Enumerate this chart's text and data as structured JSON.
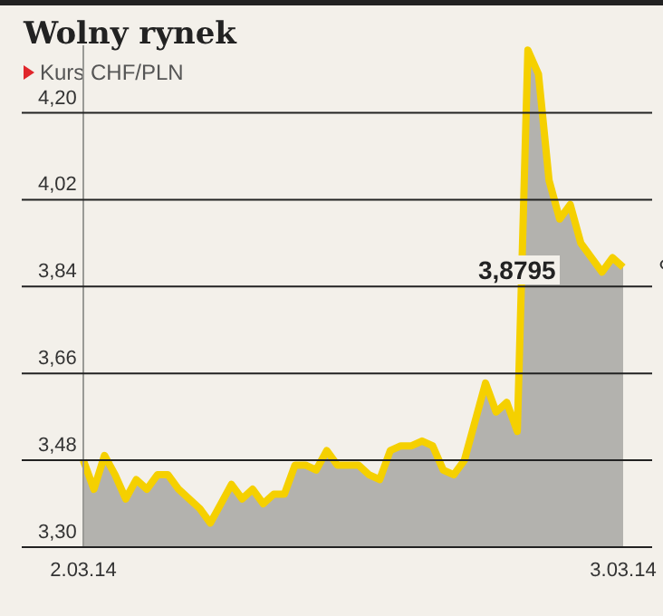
{
  "chart_data": {
    "type": "area",
    "title": "Wolny rynek",
    "subtitle": "Kurs CHF/PLN",
    "categories": [
      "2.03.14",
      null,
      null,
      null,
      null,
      null,
      null,
      null,
      null,
      null,
      null,
      null,
      null,
      null,
      null,
      null,
      null,
      null,
      null,
      null,
      null,
      null,
      null,
      null,
      null,
      null,
      null,
      null,
      null,
      null,
      null,
      null,
      null,
      null,
      null,
      null,
      null,
      null,
      null,
      null,
      null,
      null,
      null,
      null,
      null,
      null,
      null,
      null,
      null,
      null,
      null,
      "3.03.14"
    ],
    "series": [
      {
        "color": "#f5d000",
        "values": [
          3.48,
          3.42,
          3.49,
          3.45,
          3.4,
          3.44,
          3.42,
          3.45,
          3.45,
          3.42,
          3.4,
          3.38,
          3.35,
          3.39,
          3.43,
          3.4,
          3.42,
          3.39,
          3.41,
          3.41,
          3.47,
          3.47,
          3.46,
          3.5,
          3.47,
          3.47,
          3.47,
          3.45,
          3.44,
          3.5,
          3.51,
          3.51,
          3.52,
          3.51,
          3.46,
          3.45,
          3.48,
          3.56,
          3.64,
          3.58,
          3.6,
          3.54,
          4.33,
          4.28,
          4.06,
          3.98,
          4.01,
          3.93,
          3.9,
          3.87,
          3.9,
          3.88
        ]
      }
    ],
    "yticks": [
      {
        "value": 3.3,
        "label": "3,30"
      },
      {
        "value": 3.48,
        "label": "3,48"
      },
      {
        "value": 3.66,
        "label": "3,66"
      },
      {
        "value": 3.84,
        "label": "3,84"
      },
      {
        "value": 4.02,
        "label": "4,02"
      },
      {
        "value": 4.2,
        "label": "4,20"
      }
    ],
    "ylim": [
      3.3,
      4.34
    ],
    "grid": "y",
    "marker": "none",
    "annotations": [
      "3,8795"
    ]
  }
}
